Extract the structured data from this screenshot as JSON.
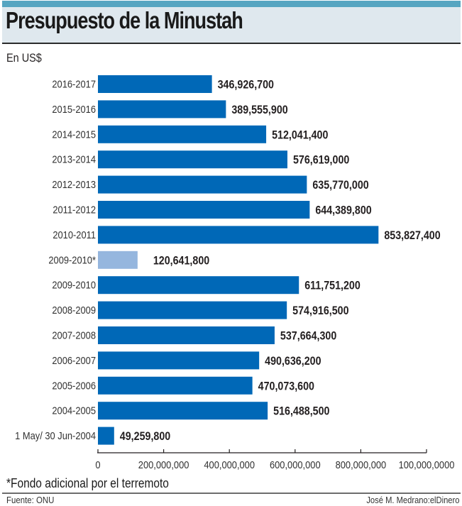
{
  "header": {
    "title": "Presupuesto de la Minustah",
    "unit_label": "En US$"
  },
  "chart_data": {
    "type": "bar",
    "orientation": "horizontal",
    "title": "Presupuesto de la Minustah",
    "xlabel": "",
    "ylabel": "En US$",
    "xlim": [
      0,
      1000000000
    ],
    "grid": false,
    "categories": [
      "2016-2017",
      "2015-2016",
      "2014-2015",
      "2013-2014",
      "2012-2013",
      "2011-2012",
      "2010-2011",
      "2009-2010*",
      "2009-2010",
      "2008-2009",
      "2007-2008",
      "2006-2007",
      "2005-2006",
      "2004-2005",
      "1 May/ 30 Jun-2004"
    ],
    "values": [
      346926700,
      389555900,
      512041400,
      576619000,
      635770000,
      644389800,
      853827400,
      120641800,
      611751200,
      574916500,
      537664300,
      490636200,
      470073600,
      516488500,
      49259800
    ],
    "value_labels": [
      "346,926,700",
      "389,555,900",
      "512,041,400",
      "576,619,000",
      "635,770,000",
      "644,389,800",
      "853,827,400",
      "120,641,800",
      "611,751,200",
      "574,916,500",
      "537,664,300",
      "490,636,200",
      "470,073,600",
      "516,488,500",
      "49,259,800"
    ],
    "highlight": [
      false,
      false,
      false,
      false,
      false,
      false,
      false,
      true,
      false,
      false,
      false,
      false,
      false,
      false,
      false
    ],
    "colors": {
      "bar": "#0068b7",
      "bar_highlight": "#95b6de",
      "axis": "#231f20"
    },
    "x_ticks": [
      0,
      200000000,
      400000000,
      600000000,
      800000000,
      1000000000
    ],
    "x_tick_labels": [
      "0",
      "200,000,000",
      "400,000,000",
      "600,000,000",
      "800,000,000",
      "100,000,0000"
    ]
  },
  "footer": {
    "footnote": "*Fondo adicional por el terremoto",
    "source": "Fuente: ONU",
    "credit": "José M. Medrano:elDinero"
  }
}
